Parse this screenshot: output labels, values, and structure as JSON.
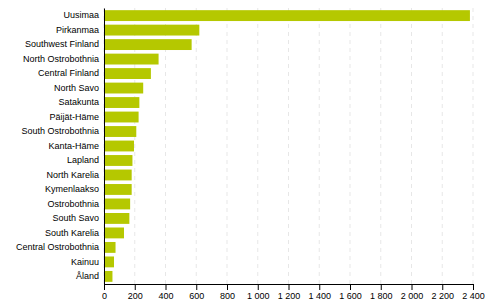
{
  "chart_data": {
    "type": "bar",
    "orientation": "horizontal",
    "categories": [
      "Uusimaa",
      "Pirkanmaa",
      "Southwest Finland",
      "North Ostrobothnia",
      "Central Finland",
      "North Savo",
      "Satakunta",
      "Päijät-Häme",
      "South Ostrobothnia",
      "Kanta-Häme",
      "Lapland",
      "North Karelia",
      "Kymenlaakso",
      "Ostrobothnia",
      "South Savo",
      "South Karelia",
      "Central Ostrobothnia",
      "Kainuu",
      "Åland"
    ],
    "values": [
      2380,
      620,
      570,
      355,
      305,
      255,
      230,
      225,
      210,
      195,
      185,
      180,
      180,
      170,
      165,
      130,
      75,
      65,
      55
    ],
    "color": "#b5c800",
    "xlim": [
      0,
      2400
    ],
    "xticks": [
      0,
      200,
      400,
      600,
      800,
      {
        "value": 1000,
        "label": "1 000"
      },
      {
        "value": 1200,
        "label": "1 200"
      },
      {
        "value": 1400,
        "label": "1 400"
      },
      {
        "value": 1600,
        "label": "1 600"
      },
      {
        "value": 1800,
        "label": "1 800"
      },
      {
        "value": 2000,
        "label": "2 000"
      },
      {
        "value": 2200,
        "label": "2 200"
      },
      {
        "value": 2400,
        "label": "2 400"
      }
    ],
    "grid": true
  }
}
